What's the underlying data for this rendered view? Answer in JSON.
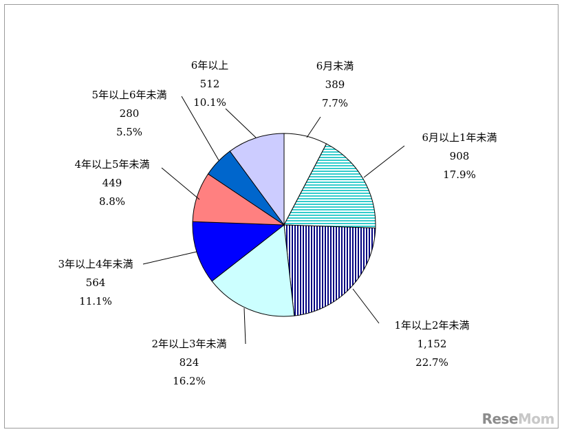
{
  "chart_data": {
    "type": "pie",
    "slices": [
      {
        "name": "6月未満",
        "value": 389,
        "percent": "7.7%",
        "value_label": "389",
        "color": "#ffffff",
        "pattern": "none"
      },
      {
        "name": "6月以上1年未満",
        "value": 908,
        "percent": "17.9%",
        "value_label": "908",
        "color": "#33cccc",
        "pattern": "hstripes"
      },
      {
        "name": "1年以上2年未満",
        "value": 1152,
        "percent": "22.7%",
        "value_label": "1,152",
        "color": "#000080",
        "pattern": "vstripes"
      },
      {
        "name": "2年以上3年未満",
        "value": 824,
        "percent": "16.2%",
        "value_label": "824",
        "color": "#ccffff",
        "pattern": "none"
      },
      {
        "name": "3年以上4年未満",
        "value": 564,
        "percent": "11.1%",
        "value_label": "564",
        "color": "#0000ff",
        "pattern": "none"
      },
      {
        "name": "4年以上5年未満",
        "value": 449,
        "percent": "8.8%",
        "value_label": "449",
        "color": "#ff8080",
        "pattern": "none"
      },
      {
        "name": "5年以上6年未満",
        "value": 280,
        "percent": "5.5%",
        "value_label": "280",
        "color": "#0066cc",
        "pattern": "none"
      },
      {
        "name": "6年以上",
        "value": 512,
        "percent": "10.1%",
        "value_label": "512",
        "color": "#ccccff",
        "pattern": "none"
      }
    ]
  },
  "watermark": {
    "part1": "Rese",
    "part2": "Mom"
  }
}
